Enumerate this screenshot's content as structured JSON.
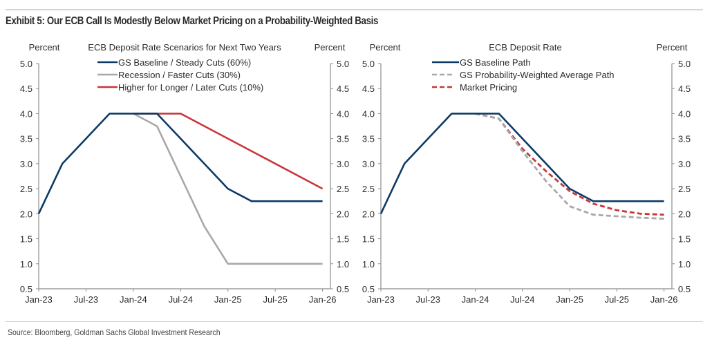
{
  "header": {
    "title": "Exhibit 5: Our ECB Call Is Modestly Below Market Pricing on a Probability-Weighted Basis"
  },
  "footer": {
    "source": "Source: Bloomberg, Goldman Sachs Global Investment Research"
  },
  "chart_data": [
    {
      "type": "line",
      "title": "ECB Deposit Rate Scenarios for Next Two Years",
      "ylabel_left": "Percent",
      "ylabel_right": "Percent",
      "xlabel": "",
      "x_unit": "months since Jan-23",
      "xlim": [
        0,
        37
      ],
      "ylim": [
        0.5,
        5.0
      ],
      "yticks": [
        "5.0",
        "4.5",
        "4.0",
        "3.5",
        "3.0",
        "2.5",
        "2.0",
        "1.5",
        "1.0",
        "0.5"
      ],
      "xticks": [
        {
          "label": "Jan-23",
          "x": 0
        },
        {
          "label": "Jul-23",
          "x": 6
        },
        {
          "label": "Jan-24",
          "x": 12
        },
        {
          "label": "Jul-24",
          "x": 18
        },
        {
          "label": "Jan-25",
          "x": 24
        },
        {
          "label": "Jul-25",
          "x": 30
        },
        {
          "label": "Jan-26",
          "x": 36
        }
      ],
      "grid": false,
      "legend_position": "top-center",
      "series": [
        {
          "name": "GS Baseline / Steady Cuts (60%)",
          "color": "#0b3a66",
          "style": "solid",
          "points": [
            [
              0,
              2.0
            ],
            [
              3,
              3.0
            ],
            [
              9,
              4.0
            ],
            [
              15,
              4.0
            ],
            [
              24,
              2.5
            ],
            [
              27,
              2.25
            ],
            [
              36,
              2.25
            ]
          ]
        },
        {
          "name": "Recession / Faster Cuts (30%)",
          "color": "#a8a8a8",
          "style": "solid",
          "points": [
            [
              12,
              4.0
            ],
            [
              15,
              3.75
            ],
            [
              21,
              1.75
            ],
            [
              24,
              1.0
            ],
            [
              36,
              1.0
            ]
          ]
        },
        {
          "name": "Higher for Longer / Later Cuts (10%)",
          "color": "#c8363a",
          "style": "solid",
          "points": [
            [
              12,
              4.0
            ],
            [
              18,
              4.0
            ],
            [
              36,
              2.5
            ]
          ]
        }
      ]
    },
    {
      "type": "line",
      "title": "ECB Deposit Rate",
      "ylabel_left": "Percent",
      "ylabel_right": "Percent",
      "xlabel": "",
      "x_unit": "months since Jan-23",
      "xlim": [
        0,
        37
      ],
      "ylim": [
        0.5,
        5.0
      ],
      "yticks": [
        "5.0",
        "4.5",
        "4.0",
        "3.5",
        "3.0",
        "2.5",
        "2.0",
        "1.5",
        "1.0",
        "0.5"
      ],
      "xticks": [
        {
          "label": "Jan-23",
          "x": 0
        },
        {
          "label": "Jul-23",
          "x": 6
        },
        {
          "label": "Jan-24",
          "x": 12
        },
        {
          "label": "Jul-24",
          "x": 18
        },
        {
          "label": "Jan-25",
          "x": 24
        },
        {
          "label": "Jul-25",
          "x": 30
        },
        {
          "label": "Jan-26",
          "x": 36
        }
      ],
      "grid": false,
      "legend_position": "top-center",
      "series": [
        {
          "name": "GS Baseline Path",
          "color": "#0b3a66",
          "style": "solid",
          "points": [
            [
              0,
              2.0
            ],
            [
              3,
              3.0
            ],
            [
              9,
              4.0
            ],
            [
              15,
              4.0
            ],
            [
              24,
              2.5
            ],
            [
              27,
              2.25
            ],
            [
              36,
              2.25
            ]
          ]
        },
        {
          "name": "GS Probability-Weighted Average Path",
          "color": "#a8a8a8",
          "style": "dashed",
          "points": [
            [
              12,
              4.0
            ],
            [
              15,
              3.9
            ],
            [
              18,
              3.25
            ],
            [
              21,
              2.65
            ],
            [
              24,
              2.15
            ],
            [
              27,
              1.98
            ],
            [
              30,
              1.95
            ],
            [
              33,
              1.92
            ],
            [
              36,
              1.9
            ]
          ]
        },
        {
          "name": "Market Pricing",
          "color": "#c8363a",
          "style": "dashed",
          "points": [
            [
              12,
              4.0
            ],
            [
              15,
              3.9
            ],
            [
              18,
              3.3
            ],
            [
              21,
              2.85
            ],
            [
              24,
              2.45
            ],
            [
              27,
              2.2
            ],
            [
              30,
              2.07
            ],
            [
              33,
              2.0
            ],
            [
              36,
              1.98
            ]
          ]
        }
      ]
    }
  ]
}
